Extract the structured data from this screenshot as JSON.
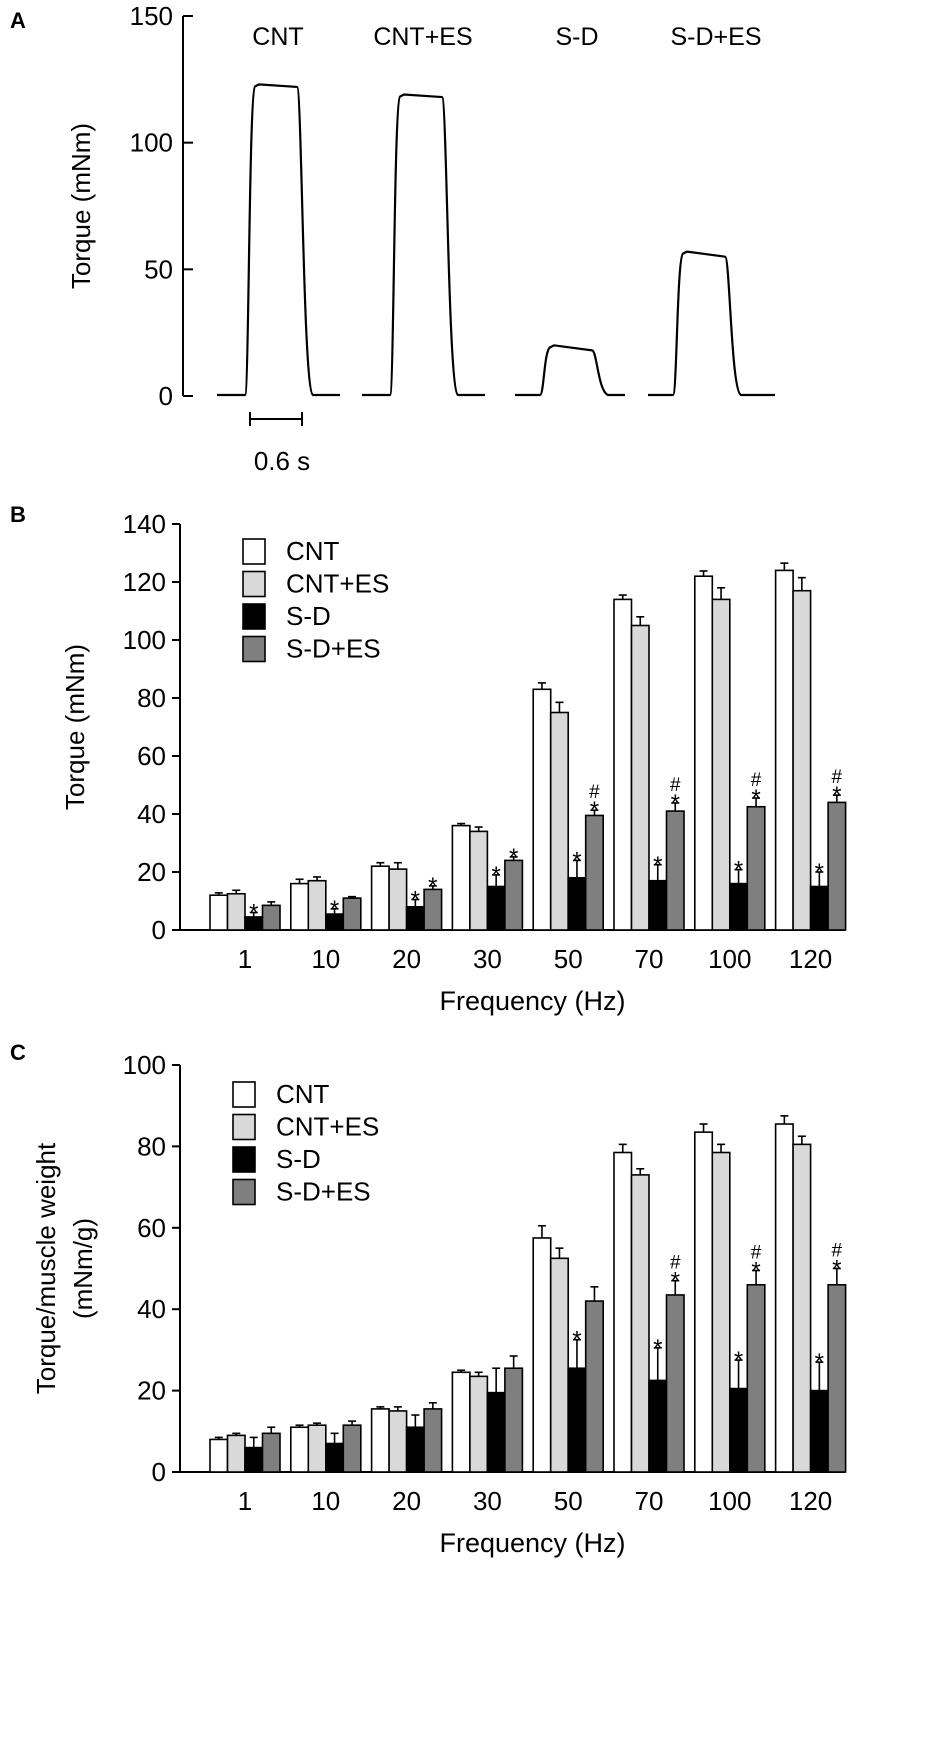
{
  "chart_data": [
    {
      "panel": "A",
      "type": "line",
      "title": "",
      "ylabel": "Torque (mNm)",
      "ylim": [
        0,
        150
      ],
      "yticks": [
        0,
        50,
        100,
        150
      ],
      "scale_bar_label": "0.6 s",
      "series": [
        {
          "name": "CNT",
          "plateau_start": 123,
          "plateau_end": 122
        },
        {
          "name": "CNT+ES",
          "plateau_start": 119,
          "plateau_end": 118
        },
        {
          "name": "S-D",
          "plateau_start": 20,
          "plateau_end": 18
        },
        {
          "name": "S-D+ES",
          "plateau_start": 57,
          "plateau_end": 55
        }
      ]
    },
    {
      "panel": "B",
      "type": "bar",
      "xlabel": "Frequency (Hz)",
      "ylabel": "Torque (mNm)",
      "ylim": [
        0,
        140
      ],
      "yticks": [
        0,
        20,
        40,
        60,
        80,
        100,
        120,
        140
      ],
      "categories": [
        "1",
        "10",
        "20",
        "30",
        "50",
        "70",
        "100",
        "120"
      ],
      "series": [
        {
          "name": "CNT",
          "values": [
            12,
            16,
            22,
            36,
            83,
            114,
            122,
            124
          ],
          "errors": [
            0.8,
            1.5,
            1.2,
            0.7,
            2.2,
            1.5,
            1.8,
            2.5
          ]
        },
        {
          "name": "CNT+ES",
          "values": [
            12.5,
            17,
            21,
            34,
            75,
            105,
            114,
            117
          ],
          "errors": [
            1.2,
            1.3,
            2.2,
            1.5,
            3.5,
            3.0,
            4.0,
            4.5
          ]
        },
        {
          "name": "S-D",
          "values": [
            4.5,
            5.5,
            8,
            15,
            18,
            17,
            16,
            15
          ],
          "errors": [
            1.5,
            1.8,
            2.5,
            4.0,
            6.0,
            5.5,
            4.8,
            5.0
          ]
        },
        {
          "name": "S-D+ES",
          "values": [
            8.5,
            11,
            14,
            24,
            39.5,
            41,
            42.5,
            44
          ],
          "errors": [
            1.2,
            0.5,
            1.2,
            1.2,
            1.8,
            2.8,
            3.0,
            2.5
          ]
        }
      ],
      "annotations": [
        {
          "group": 0,
          "series": 2,
          "marks": [
            "*"
          ]
        },
        {
          "group": 1,
          "series": 2,
          "marks": [
            "*"
          ]
        },
        {
          "group": 2,
          "series": 2,
          "marks": [
            "*"
          ]
        },
        {
          "group": 2,
          "series": 3,
          "marks": [
            "*"
          ]
        },
        {
          "group": 3,
          "series": 2,
          "marks": [
            "*"
          ]
        },
        {
          "group": 3,
          "series": 3,
          "marks": [
            "*"
          ]
        },
        {
          "group": 4,
          "series": 2,
          "marks": [
            "*"
          ]
        },
        {
          "group": 4,
          "series": 3,
          "marks": [
            "*",
            "#"
          ]
        },
        {
          "group": 5,
          "series": 2,
          "marks": [
            "*"
          ]
        },
        {
          "group": 5,
          "series": 3,
          "marks": [
            "*",
            "#"
          ]
        },
        {
          "group": 6,
          "series": 2,
          "marks": [
            "*"
          ]
        },
        {
          "group": 6,
          "series": 3,
          "marks": [
            "*",
            "#"
          ]
        },
        {
          "group": 7,
          "series": 2,
          "marks": [
            "*"
          ]
        },
        {
          "group": 7,
          "series": 3,
          "marks": [
            "*",
            "#"
          ]
        }
      ]
    },
    {
      "panel": "C",
      "type": "bar",
      "xlabel": "Frequency (Hz)",
      "ylabel": "Torque/muscle weight",
      "ylabel2": "(mNm/g)",
      "ylim": [
        0,
        100
      ],
      "yticks": [
        0,
        20,
        40,
        60,
        80,
        100
      ],
      "categories": [
        "1",
        "10",
        "20",
        "30",
        "50",
        "70",
        "100",
        "120"
      ],
      "series": [
        {
          "name": "CNT",
          "values": [
            8,
            11,
            15.5,
            24.5,
            57.5,
            78.5,
            83.5,
            85.5
          ],
          "errors": [
            0.5,
            0.5,
            0.5,
            0.5,
            3.0,
            2.0,
            2.0,
            2.0
          ]
        },
        {
          "name": "CNT+ES",
          "values": [
            9,
            11.5,
            15,
            23.5,
            52.5,
            73,
            78.5,
            80.5
          ],
          "errors": [
            0.5,
            0.5,
            1.0,
            1.0,
            2.5,
            1.5,
            2.0,
            2.0
          ]
        },
        {
          "name": "S-D",
          "values": [
            6,
            7,
            11,
            19.5,
            25.5,
            22.5,
            20.5,
            20
          ],
          "errors": [
            2.5,
            2.5,
            3.0,
            6.0,
            7.0,
            8.0,
            7.0,
            7.0
          ]
        },
        {
          "name": "S-D+ES",
          "values": [
            9.5,
            11.5,
            15.5,
            25.5,
            42,
            43.5,
            46,
            46
          ],
          "errors": [
            1.5,
            1.0,
            1.5,
            3.0,
            3.5,
            3.5,
            3.5,
            4.0
          ]
        }
      ],
      "annotations": [
        {
          "group": 4,
          "series": 2,
          "marks": [
            "*"
          ]
        },
        {
          "group": 5,
          "series": 2,
          "marks": [
            "*"
          ]
        },
        {
          "group": 5,
          "series": 3,
          "marks": [
            "*",
            "#"
          ]
        },
        {
          "group": 6,
          "series": 2,
          "marks": [
            "*"
          ]
        },
        {
          "group": 6,
          "series": 3,
          "marks": [
            "*",
            "#"
          ]
        },
        {
          "group": 7,
          "series": 2,
          "marks": [
            "*"
          ]
        },
        {
          "group": 7,
          "series": 3,
          "marks": [
            "*",
            "#"
          ]
        }
      ]
    }
  ],
  "panel_labels": [
    "A",
    "B",
    "C"
  ],
  "colors": {
    "CNT": "#ffffff",
    "CNT+ES": "#d9d9d9",
    "S-D": "#000000",
    "S-D+ES": "#7f7f7f"
  }
}
